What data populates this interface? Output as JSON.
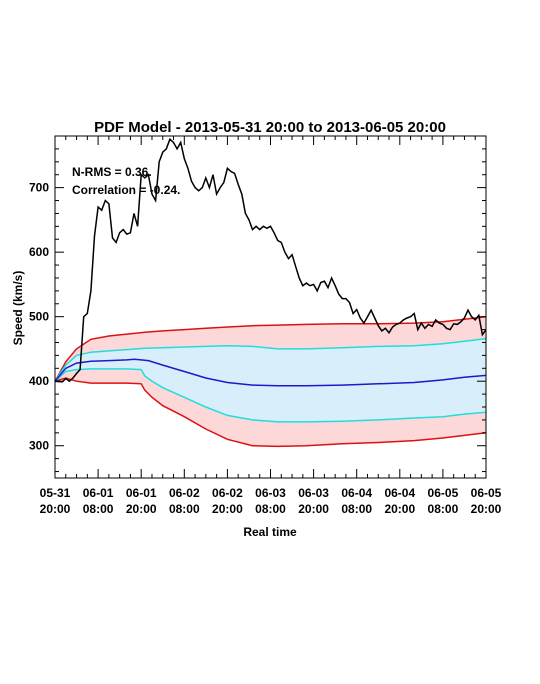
{
  "chart_data": {
    "type": "line",
    "title": "PDF Model - 2013-05-31 20:00 to 2013-06-05 20:00",
    "xlabel": "Real time",
    "ylabel": "Speed (km/s)",
    "annotations": [
      "N-RMS = 0.36.",
      "Correlation = -0.24."
    ],
    "xlim": [
      0,
      120
    ],
    "ylim": [
      250,
      780
    ],
    "grid": false,
    "x_ticks": [
      {
        "x": 0,
        "top": "05-31",
        "bottom": "20:00"
      },
      {
        "x": 12,
        "top": "06-01",
        "bottom": "08:00"
      },
      {
        "x": 24,
        "top": "06-01",
        "bottom": "20:00"
      },
      {
        "x": 36,
        "top": "06-02",
        "bottom": "08:00"
      },
      {
        "x": 48,
        "top": "06-02",
        "bottom": "20:00"
      },
      {
        "x": 60,
        "top": "06-03",
        "bottom": "08:00"
      },
      {
        "x": 72,
        "top": "06-03",
        "bottom": "20:00"
      },
      {
        "x": 84,
        "top": "06-04",
        "bottom": "08:00"
      },
      {
        "x": 96,
        "top": "06-04",
        "bottom": "20:00"
      },
      {
        "x": 108,
        "top": "06-05",
        "bottom": "08:00"
      },
      {
        "x": 120,
        "top": "06-05",
        "bottom": "20:00"
      }
    ],
    "y_ticks": [
      300,
      400,
      500,
      600,
      700
    ],
    "colors": {
      "observed": "#000000",
      "outer_band": "#dd1111",
      "outer_fill": "#fcd8d8",
      "inner_band": "#22dddd",
      "inner_fill": "#d8eefa",
      "median": "#1a1acc"
    },
    "series": [
      {
        "role": "observed",
        "x": [
          0,
          2,
          3,
          4,
          5,
          6,
          7,
          8,
          9,
          10,
          11,
          12,
          13,
          14,
          15,
          16,
          17,
          18,
          19,
          20,
          21,
          22,
          23,
          24,
          25,
          26,
          27,
          28,
          29,
          30,
          31,
          32,
          33,
          34,
          35,
          36,
          37,
          38,
          39,
          40,
          41,
          42,
          43,
          44,
          45,
          46,
          47,
          48,
          49,
          50,
          51,
          52,
          53,
          54,
          55,
          56,
          57,
          58,
          59,
          60,
          61,
          62,
          63,
          64,
          65,
          66,
          67,
          68,
          69,
          70,
          71,
          72,
          73,
          74,
          75,
          76,
          77,
          78,
          79,
          80,
          81,
          82,
          83,
          84,
          85,
          86,
          87,
          88,
          89,
          90,
          91,
          92,
          93,
          94,
          95,
          96,
          97,
          98,
          99,
          100,
          101,
          102,
          103,
          104,
          105,
          106,
          107,
          108,
          109,
          110,
          111,
          112,
          113,
          114,
          115,
          116,
          117,
          118,
          119,
          120
        ],
        "y": [
          400,
          399,
          404,
          400,
          405,
          412,
          418,
          500,
          505,
          540,
          625,
          670,
          665,
          680,
          675,
          622,
          615,
          630,
          635,
          628,
          630,
          660,
          640,
          720,
          715,
          720,
          690,
          680,
          740,
          755,
          760,
          775,
          770,
          760,
          770,
          745,
          730,
          710,
          700,
          695,
          700,
          715,
          700,
          720,
          690,
          700,
          708,
          730,
          725,
          722,
          705,
          690,
          660,
          650,
          635,
          640,
          635,
          640,
          637,
          640,
          630,
          618,
          615,
          600,
          590,
          596,
          578,
          560,
          548,
          552,
          548,
          550,
          540,
          553,
          555,
          545,
          560,
          548,
          535,
          528,
          528,
          522,
          505,
          511,
          498,
          490,
          500,
          510,
          498,
          486,
          478,
          482,
          475,
          484,
          488,
          490,
          495,
          498,
          500,
          505,
          480,
          490,
          482,
          488,
          485,
          495,
          490,
          488,
          482,
          480,
          489,
          488,
          492,
          498,
          510,
          500,
          495,
          502,
          472,
          480
        ]
      },
      {
        "role": "outer_upper",
        "x": [
          0,
          3,
          6,
          10,
          15,
          20,
          25,
          30,
          36,
          42,
          48,
          55,
          62,
          70,
          80,
          90,
          100,
          108,
          114,
          120
        ],
        "y": [
          400,
          430,
          450,
          465,
          470,
          473,
          476,
          478,
          480,
          482,
          484,
          486,
          487,
          488,
          489,
          489,
          490,
          492,
          496,
          500
        ]
      },
      {
        "role": "inner_upper",
        "x": [
          0,
          3,
          6,
          10,
          15,
          20,
          25,
          30,
          36,
          42,
          48,
          55,
          62,
          70,
          80,
          90,
          100,
          108,
          114,
          120
        ],
        "y": [
          400,
          425,
          440,
          445,
          447,
          449,
          451,
          452,
          453,
          454,
          455,
          454,
          450,
          450,
          452,
          454,
          455,
          458,
          462,
          466
        ]
      },
      {
        "role": "median",
        "x": [
          0,
          3,
          6,
          10,
          15,
          20,
          22,
          24,
          26,
          30,
          36,
          42,
          48,
          55,
          62,
          70,
          80,
          90,
          100,
          108,
          114,
          120
        ],
        "y": [
          400,
          420,
          428,
          431,
          432,
          433,
          434,
          433,
          432,
          425,
          415,
          405,
          398,
          394,
          393,
          393,
          394,
          396,
          398,
          402,
          406,
          409
        ]
      },
      {
        "role": "inner_lower",
        "x": [
          0,
          3,
          6,
          10,
          15,
          20,
          24,
          25,
          27,
          30,
          36,
          42,
          48,
          55,
          62,
          70,
          80,
          90,
          100,
          108,
          114,
          120
        ],
        "y": [
          400,
          415,
          418,
          419,
          419,
          419,
          418,
          408,
          400,
          390,
          375,
          360,
          347,
          340,
          337,
          337,
          338,
          340,
          343,
          345,
          349,
          352
        ]
      },
      {
        "role": "outer_lower",
        "x": [
          0,
          3,
          6,
          10,
          15,
          20,
          24,
          25,
          27,
          30,
          36,
          42,
          48,
          55,
          62,
          70,
          80,
          90,
          100,
          108,
          114,
          120
        ],
        "y": [
          400,
          405,
          400,
          397,
          397,
          397,
          396,
          386,
          375,
          362,
          345,
          326,
          310,
          300,
          299,
          300,
          303,
          305,
          308,
          312,
          316,
          320
        ]
      }
    ]
  }
}
